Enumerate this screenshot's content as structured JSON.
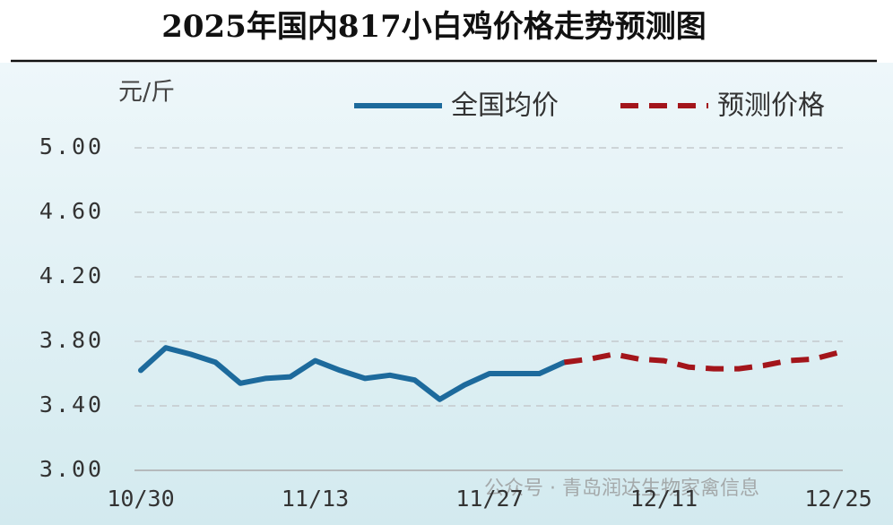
{
  "chart_data": {
    "type": "line",
    "title": "2025年国内817小白鸡价格走势预测图",
    "y_label": "元/斤",
    "watermark": "公众号 · 青岛润达生物家禽信息",
    "categories": [
      "10/30",
      null,
      null,
      null,
      null,
      null,
      null,
      "11/13",
      null,
      null,
      null,
      null,
      null,
      null,
      "11/27",
      null,
      null,
      null,
      null,
      null,
      null,
      "12/11",
      null,
      null,
      null,
      null,
      null,
      null,
      "12/25"
    ],
    "series": [
      {
        "name": "全国均价",
        "color": "#1d6a9c",
        "dashed": false,
        "values": [
          3.62,
          3.76,
          3.72,
          3.67,
          3.54,
          3.57,
          3.58,
          3.68,
          3.62,
          3.57,
          3.59,
          3.56,
          3.44,
          3.53,
          3.6,
          3.6,
          3.6,
          3.67,
          null,
          null,
          null,
          null,
          null,
          null,
          null,
          null,
          null,
          null,
          null
        ]
      },
      {
        "name": "预测价格",
        "color": "#a3151b",
        "dashed": true,
        "values": [
          null,
          null,
          null,
          null,
          null,
          null,
          null,
          null,
          null,
          null,
          null,
          null,
          null,
          null,
          null,
          null,
          null,
          3.67,
          3.69,
          3.72,
          3.69,
          3.68,
          3.64,
          3.63,
          3.63,
          3.65,
          3.68,
          3.69,
          3.73
        ]
      }
    ],
    "ylim": [
      3.0,
      5.0
    ],
    "yticks": [
      {
        "value": 3.0,
        "label": "3.00"
      },
      {
        "value": 3.4,
        "label": "3.40"
      },
      {
        "value": 3.8,
        "label": "3.80"
      },
      {
        "value": 4.2,
        "label": "4.20"
      },
      {
        "value": 4.6,
        "label": "4.60"
      },
      {
        "value": 5.0,
        "label": "5.00"
      }
    ],
    "grid": true
  }
}
